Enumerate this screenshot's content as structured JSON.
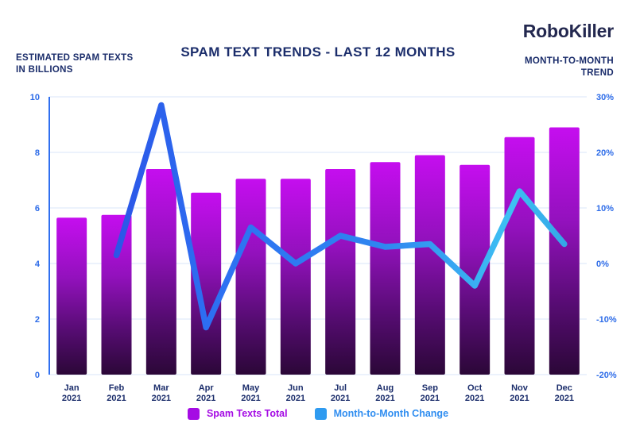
{
  "logo": "RoboKiller",
  "chart_data": {
    "type": "bar",
    "title": "SPAM TEXT TRENDS - LAST 12 MONTHS",
    "categories": [
      "Jan 2021",
      "Feb 2021",
      "Mar 2021",
      "Apr 2021",
      "May 2021",
      "Jun 2021",
      "Jul 2021",
      "Aug 2021",
      "Sep 2021",
      "Oct 2021",
      "Nov 2021",
      "Dec 2021"
    ],
    "series": [
      {
        "name": "Spam Texts Total",
        "type": "bar",
        "axis": "left",
        "values": [
          5.65,
          5.75,
          7.4,
          6.55,
          7.05,
          7.05,
          7.4,
          7.65,
          7.9,
          7.55,
          8.55,
          8.9
        ]
      },
      {
        "name": "Month-to-Month Change",
        "type": "line",
        "axis": "right",
        "values": [
          null,
          1.5,
          28.5,
          -11.5,
          6.5,
          0,
          5,
          3,
          3.5,
          -4,
          13,
          3.5
        ]
      }
    ],
    "left_axis": {
      "title_line1": "ESTIMATED SPAM TEXTS",
      "title_line2": "IN BILLIONS",
      "tick_labels": [
        "0",
        "2",
        "4",
        "6",
        "8",
        "10"
      ],
      "tick_values": [
        0,
        2,
        4,
        6,
        8,
        10
      ],
      "range": [
        0,
        10
      ]
    },
    "right_axis": {
      "title_line1": "MONTH-TO-MONTH",
      "title_line2": "TREND",
      "tick_labels": [
        "-20%",
        "-10%",
        "0%",
        "10%",
        "20%",
        "30%"
      ],
      "tick_values": [
        -20,
        -10,
        0,
        10,
        20,
        30
      ],
      "range": [
        -20,
        30
      ]
    },
    "grid": true,
    "legend_position": "bottom",
    "colors": {
      "bar_top": "#C50EEF",
      "bar_bottom": "#2B0737",
      "line_start": "#2B43DF",
      "line_end": "#3EC1F3",
      "axis_tick_text": "#2C6BE8",
      "title_text": "#1B2D6B",
      "legend_spam": "#A50CE4",
      "legend_change": "#2F9BF0",
      "gridline": "#D9E6F8"
    }
  }
}
